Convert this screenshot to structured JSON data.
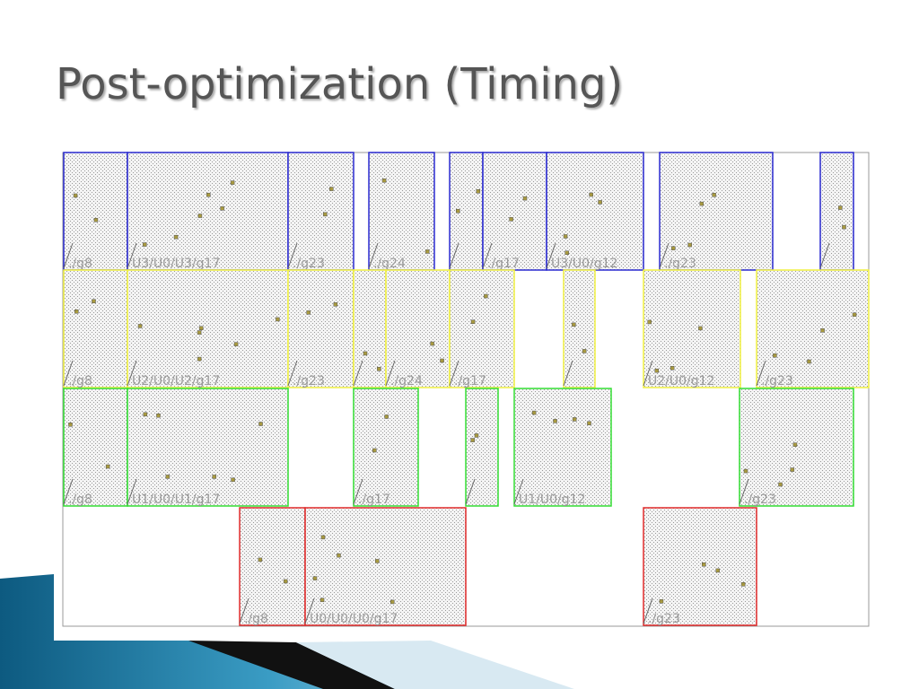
{
  "title": "Post-optimization (Timing)",
  "rows": [
    {
      "color": "#2a2ad0",
      "labels": [
        "./g8",
        "U3/U0/U3/g17",
        "./g23",
        "./g24",
        "./g17",
        "U3/U0/g12",
        "./g23"
      ]
    },
    {
      "color": "#f0f040",
      "labels": [
        "./g8",
        "U2/U0/U2/g17",
        "./g23",
        "./g24",
        "./g17",
        "U2/U0/g12",
        "./g23"
      ]
    },
    {
      "color": "#33dd33",
      "labels": [
        "./g8",
        "U1/U0/U1/g17",
        "./g17",
        "U1/U0/g12",
        "./g23"
      ]
    },
    {
      "color": "#e02a2a",
      "labels": [
        "./g8",
        "U0/U0/U0/g17",
        "./g23"
      ]
    }
  ]
}
